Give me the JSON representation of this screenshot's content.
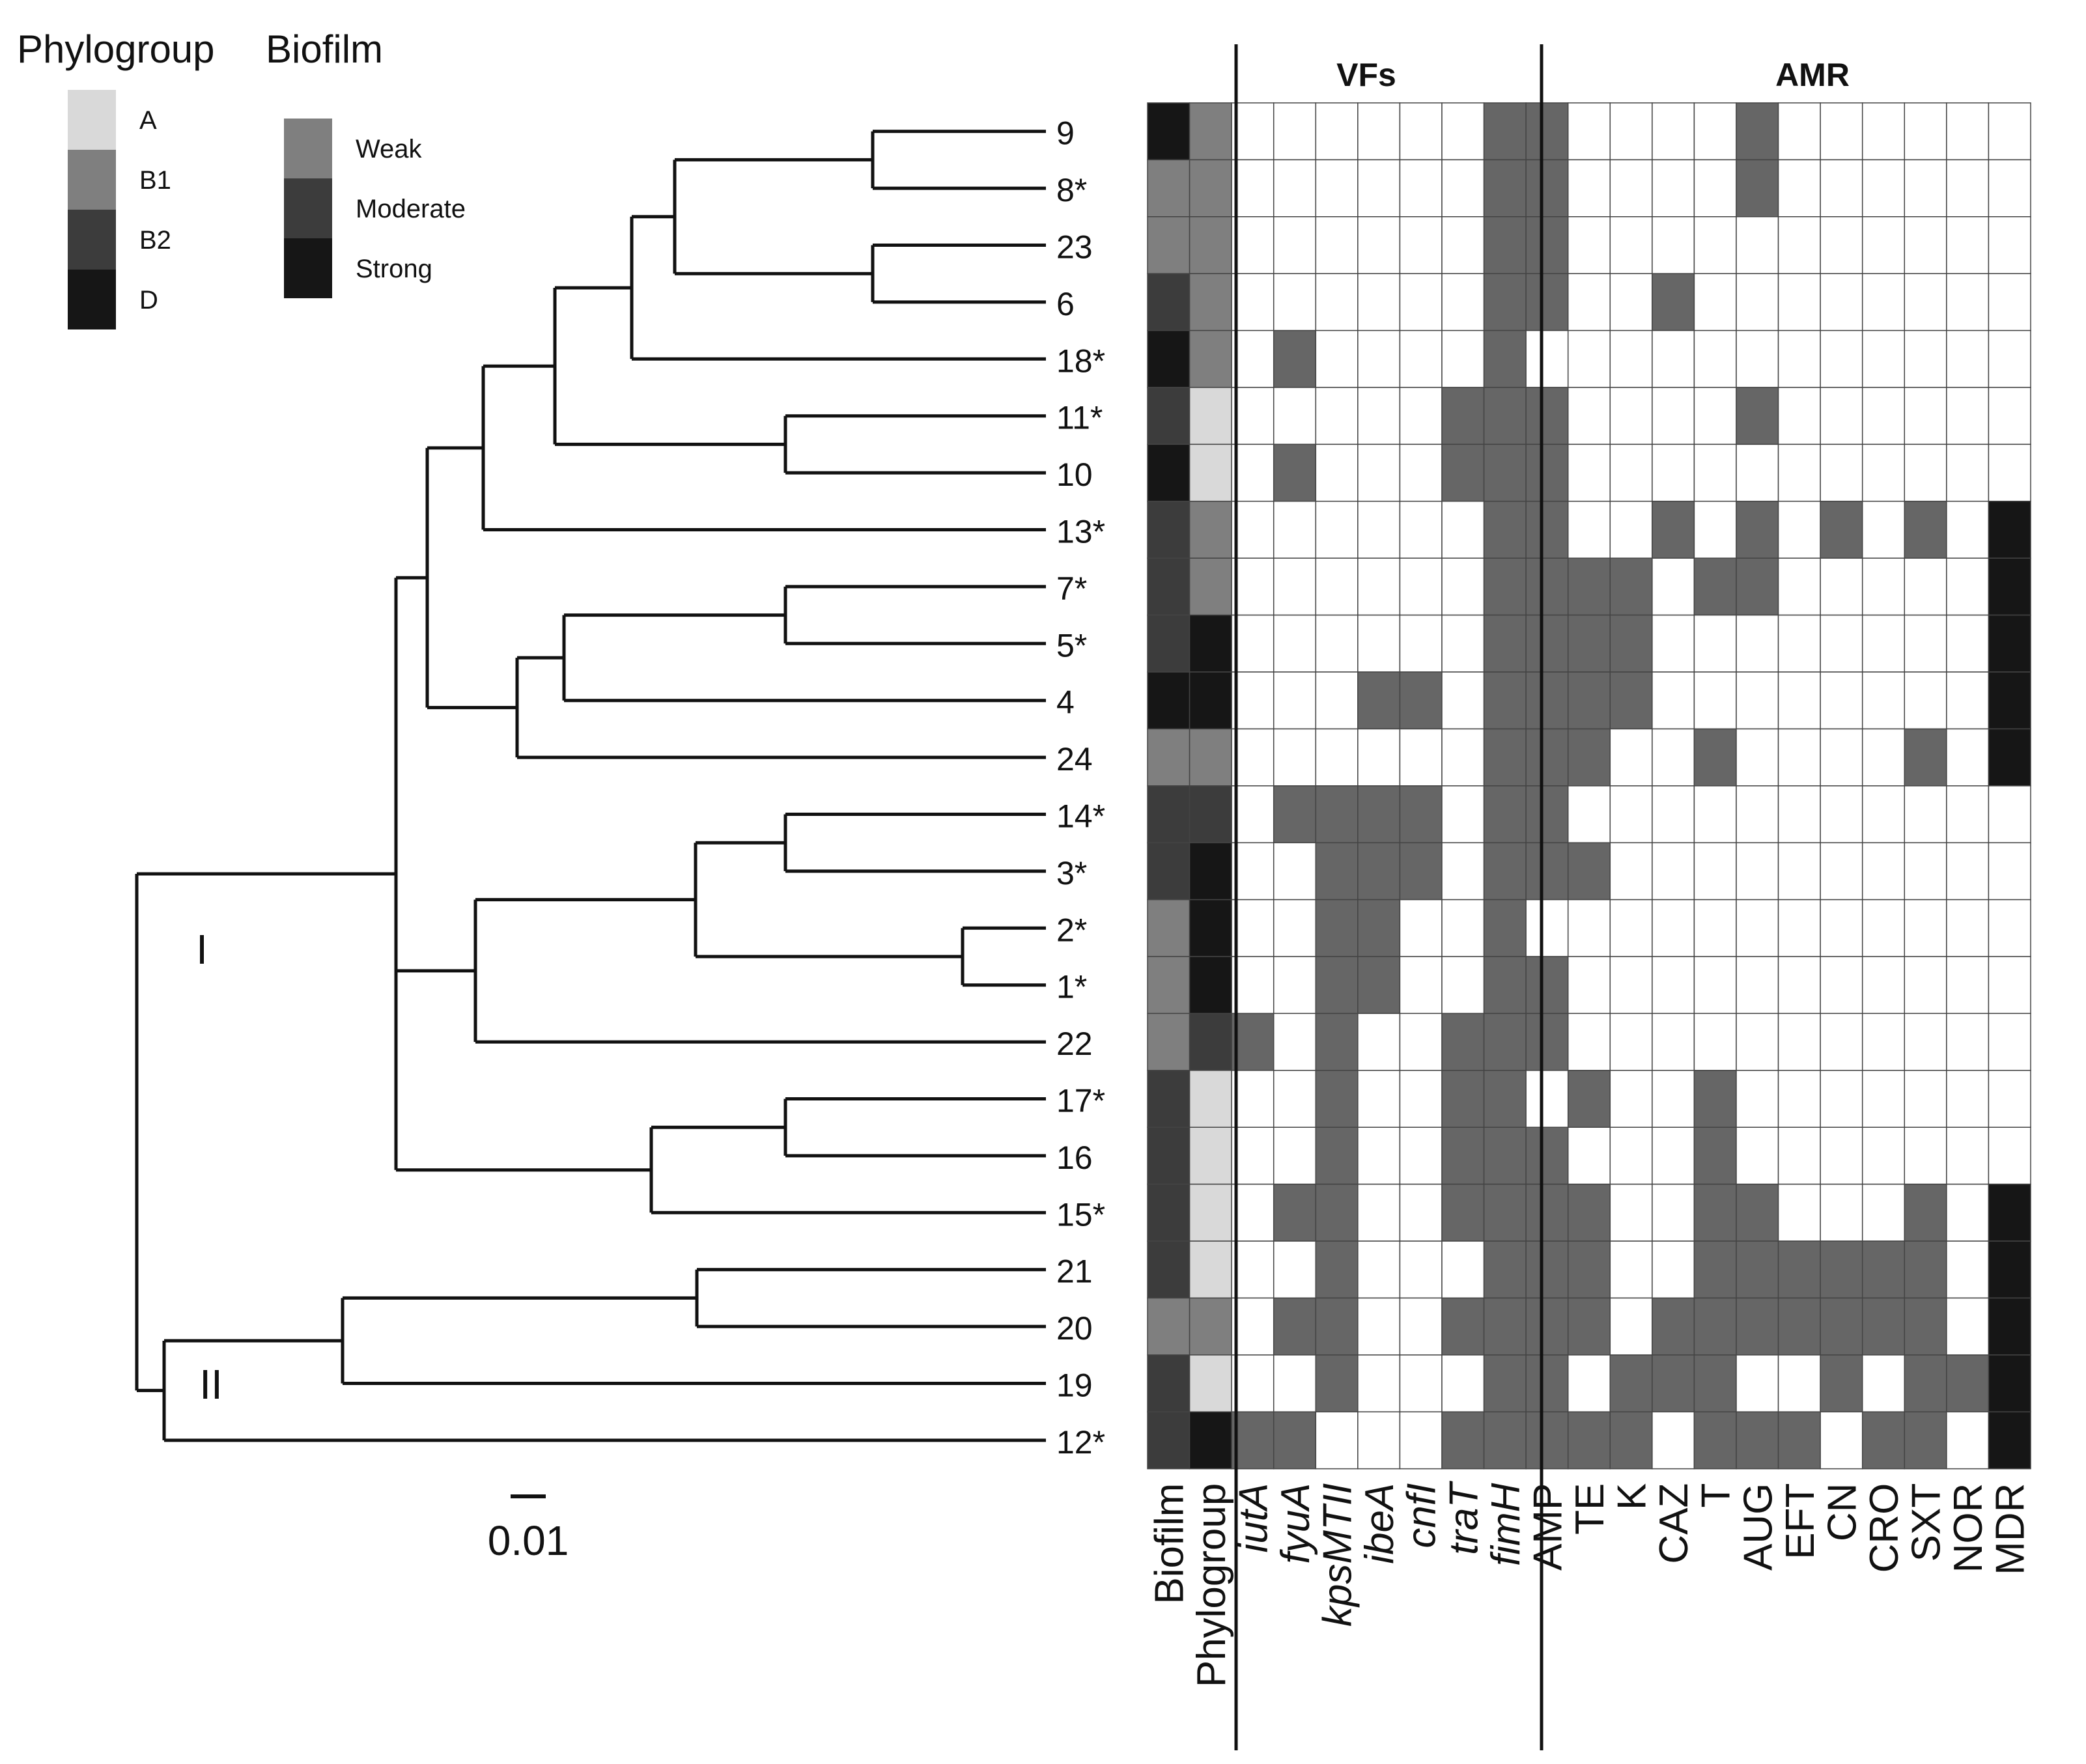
{
  "legend": {
    "phylogroup_title": "Phylogroup",
    "biofilm_title": "Biofilm",
    "phylogroup_items": [
      {
        "label": "A",
        "color": "#d9d9d9"
      },
      {
        "label": "B1",
        "color": "#7f7f7f"
      },
      {
        "label": "B2",
        "color": "#3c3c3c"
      },
      {
        "label": "D",
        "color": "#161616"
      }
    ],
    "biofilm_items": [
      {
        "label": "Weak",
        "color": "#7f7f7f"
      },
      {
        "label": "Moderate",
        "color": "#3c3c3c"
      },
      {
        "label": "Strong",
        "color": "#161616"
      }
    ]
  },
  "tree": {
    "clade_labels": [
      "I",
      "II"
    ],
    "scale_label": "0.01",
    "scale_value": 0.01
  },
  "headers": {
    "vfs": "VFs",
    "amr": "AMR"
  },
  "columns": {
    "biofilm": "Biofilm",
    "phylogroup": "Phylogroup",
    "vfs": [
      "iutA",
      "fyuA",
      "kpsMTII",
      "ibeA",
      "cnfI",
      "traT",
      "fimH"
    ],
    "amr": [
      "AMP",
      "TE",
      "K",
      "CAZ",
      "T",
      "AUG",
      "EFT",
      "CN",
      "CRO",
      "SXT",
      "NOR",
      "MDR"
    ]
  },
  "colors": {
    "present": "#666666",
    "absent": "#ffffff",
    "mdr": "#161616",
    "grid": "#444444"
  },
  "rows": [
    {
      "id": "9",
      "biofilm": "Strong",
      "phylogroup": "B1",
      "vf": [
        0,
        0,
        0,
        0,
        0,
        0,
        1
      ],
      "amr": [
        1,
        0,
        0,
        0,
        0,
        1,
        0,
        0,
        0,
        0,
        0,
        0
      ]
    },
    {
      "id": "8*",
      "biofilm": "Weak",
      "phylogroup": "B1",
      "vf": [
        0,
        0,
        0,
        0,
        0,
        0,
        1
      ],
      "amr": [
        1,
        0,
        0,
        0,
        0,
        1,
        0,
        0,
        0,
        0,
        0,
        0
      ]
    },
    {
      "id": "23",
      "biofilm": "Weak",
      "phylogroup": "B1",
      "vf": [
        0,
        0,
        0,
        0,
        0,
        0,
        1
      ],
      "amr": [
        1,
        0,
        0,
        0,
        0,
        0,
        0,
        0,
        0,
        0,
        0,
        0
      ]
    },
    {
      "id": "6",
      "biofilm": "Moderate",
      "phylogroup": "B1",
      "vf": [
        0,
        0,
        0,
        0,
        0,
        0,
        1
      ],
      "amr": [
        1,
        0,
        0,
        1,
        0,
        0,
        0,
        0,
        0,
        0,
        0,
        0
      ]
    },
    {
      "id": "18*",
      "biofilm": "Strong",
      "phylogroup": "B1",
      "vf": [
        0,
        1,
        0,
        0,
        0,
        0,
        1
      ],
      "amr": [
        0,
        0,
        0,
        0,
        0,
        0,
        0,
        0,
        0,
        0,
        0,
        0
      ]
    },
    {
      "id": "11*",
      "biofilm": "Moderate",
      "phylogroup": "A",
      "vf": [
        0,
        0,
        0,
        0,
        0,
        1,
        1
      ],
      "amr": [
        1,
        0,
        0,
        0,
        0,
        1,
        0,
        0,
        0,
        0,
        0,
        0
      ]
    },
    {
      "id": "10",
      "biofilm": "Strong",
      "phylogroup": "A",
      "vf": [
        0,
        1,
        0,
        0,
        0,
        1,
        1
      ],
      "amr": [
        1,
        0,
        0,
        0,
        0,
        0,
        0,
        0,
        0,
        0,
        0,
        0
      ]
    },
    {
      "id": "13*",
      "biofilm": "Moderate",
      "phylogroup": "B1",
      "vf": [
        0,
        0,
        0,
        0,
        0,
        0,
        1
      ],
      "amr": [
        1,
        0,
        0,
        1,
        0,
        1,
        0,
        1,
        0,
        1,
        0,
        1
      ]
    },
    {
      "id": "7*",
      "biofilm": "Moderate",
      "phylogroup": "B1",
      "vf": [
        0,
        0,
        0,
        0,
        0,
        0,
        1
      ],
      "amr": [
        1,
        1,
        1,
        0,
        1,
        1,
        0,
        0,
        0,
        0,
        0,
        1
      ]
    },
    {
      "id": "5*",
      "biofilm": "Moderate",
      "phylogroup": "D",
      "vf": [
        0,
        0,
        0,
        0,
        0,
        0,
        1
      ],
      "amr": [
        1,
        1,
        1,
        0,
        0,
        0,
        0,
        0,
        0,
        0,
        0,
        1
      ]
    },
    {
      "id": "4",
      "biofilm": "Strong",
      "phylogroup": "D",
      "vf": [
        0,
        0,
        0,
        1,
        1,
        0,
        1
      ],
      "amr": [
        1,
        1,
        1,
        0,
        0,
        0,
        0,
        0,
        0,
        0,
        0,
        1
      ]
    },
    {
      "id": "24",
      "biofilm": "Weak",
      "phylogroup": "B1",
      "vf": [
        0,
        0,
        0,
        0,
        0,
        0,
        1
      ],
      "amr": [
        1,
        1,
        0,
        0,
        1,
        0,
        0,
        0,
        0,
        1,
        0,
        1
      ]
    },
    {
      "id": "14*",
      "biofilm": "Moderate",
      "phylogroup": "B2",
      "vf": [
        0,
        1,
        1,
        1,
        1,
        0,
        1
      ],
      "amr": [
        1,
        0,
        0,
        0,
        0,
        0,
        0,
        0,
        0,
        0,
        0,
        0
      ]
    },
    {
      "id": "3*",
      "biofilm": "Moderate",
      "phylogroup": "D",
      "vf": [
        0,
        0,
        1,
        1,
        1,
        0,
        1
      ],
      "amr": [
        1,
        1,
        0,
        0,
        0,
        0,
        0,
        0,
        0,
        0,
        0,
        0
      ]
    },
    {
      "id": "2*",
      "biofilm": "Weak",
      "phylogroup": "D",
      "vf": [
        0,
        0,
        1,
        1,
        0,
        0,
        1
      ],
      "amr": [
        0,
        0,
        0,
        0,
        0,
        0,
        0,
        0,
        0,
        0,
        0,
        0
      ]
    },
    {
      "id": "1*",
      "biofilm": "Weak",
      "phylogroup": "D",
      "vf": [
        0,
        0,
        1,
        1,
        0,
        0,
        1
      ],
      "amr": [
        1,
        0,
        0,
        0,
        0,
        0,
        0,
        0,
        0,
        0,
        0,
        0
      ]
    },
    {
      "id": "22",
      "biofilm": "Weak",
      "phylogroup": "B2",
      "vf": [
        1,
        0,
        1,
        0,
        0,
        1,
        1
      ],
      "amr": [
        1,
        0,
        0,
        0,
        0,
        0,
        0,
        0,
        0,
        0,
        0,
        0
      ]
    },
    {
      "id": "17*",
      "biofilm": "Moderate",
      "phylogroup": "A",
      "vf": [
        0,
        0,
        1,
        0,
        0,
        1,
        1
      ],
      "amr": [
        0,
        1,
        0,
        0,
        1,
        0,
        0,
        0,
        0,
        0,
        0,
        0
      ]
    },
    {
      "id": "16",
      "biofilm": "Moderate",
      "phylogroup": "A",
      "vf": [
        0,
        0,
        1,
        0,
        0,
        1,
        1
      ],
      "amr": [
        1,
        0,
        0,
        0,
        1,
        0,
        0,
        0,
        0,
        0,
        0,
        0
      ]
    },
    {
      "id": "15*",
      "biofilm": "Moderate",
      "phylogroup": "A",
      "vf": [
        0,
        1,
        1,
        0,
        0,
        1,
        1
      ],
      "amr": [
        1,
        1,
        0,
        0,
        1,
        1,
        0,
        0,
        0,
        1,
        0,
        1
      ]
    },
    {
      "id": "21",
      "biofilm": "Moderate",
      "phylogroup": "A",
      "vf": [
        0,
        0,
        1,
        0,
        0,
        0,
        1
      ],
      "amr": [
        1,
        1,
        0,
        0,
        1,
        1,
        1,
        1,
        1,
        1,
        0,
        1
      ]
    },
    {
      "id": "20",
      "biofilm": "Weak",
      "phylogroup": "B1",
      "vf": [
        0,
        1,
        1,
        0,
        0,
        1,
        1
      ],
      "amr": [
        1,
        1,
        0,
        1,
        1,
        1,
        1,
        1,
        1,
        1,
        0,
        1
      ]
    },
    {
      "id": "19",
      "biofilm": "Moderate",
      "phylogroup": "A",
      "vf": [
        0,
        0,
        1,
        0,
        0,
        0,
        1
      ],
      "amr": [
        1,
        0,
        1,
        1,
        1,
        0,
        0,
        1,
        0,
        1,
        1,
        1
      ]
    },
    {
      "id": "12*",
      "biofilm": "Moderate",
      "phylogroup": "D",
      "vf": [
        1,
        1,
        0,
        0,
        0,
        1,
        1
      ],
      "amr": [
        1,
        1,
        1,
        0,
        1,
        1,
        1,
        0,
        1,
        1,
        0,
        1
      ]
    }
  ]
}
